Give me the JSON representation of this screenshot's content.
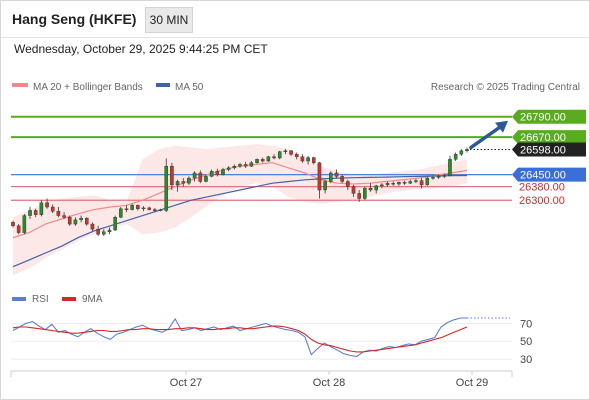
{
  "header": {
    "title": "Hang Seng (HKFE)",
    "timeframe": "30 MIN",
    "datetime": "Wednesday, October 29, 2025 9:44:25 PM CET"
  },
  "legend": {
    "ma20": "MA 20 + Bollinger Bands",
    "ma50": "MA 50",
    "credit": "Research © 2025 Trading Central"
  },
  "rsi_legend": {
    "rsi": "RSI",
    "ma9": "9MA"
  },
  "colors": {
    "resistance": "#5aac1f",
    "support": "#e2747b",
    "pivot": "#3a6fd8",
    "bullish_candle": "#2a8a2a",
    "bearish_candle": "#c0392b",
    "ma20": "#f08a8a",
    "ma50": "#3f63a8",
    "bollinger_fill": "#fde6e6",
    "arrow": "#2d5a96",
    "rsi": "#5b7fd6",
    "rsi_ma9": "#d62728"
  },
  "chart_data": [
    {
      "type": "candlestick",
      "x_ticks": [
        "Oct 27",
        "Oct 28",
        "Oct 29"
      ],
      "ylim": [
        25820,
        26900
      ],
      "levels": [
        {
          "label": "26790.00",
          "value": 26790,
          "role": "resistance"
        },
        {
          "label": "26670.00",
          "value": 26670,
          "role": "resistance"
        },
        {
          "label": "26598.00",
          "value": 26598,
          "role": "last"
        },
        {
          "label": "26450.00",
          "value": 26450,
          "role": "pivot"
        },
        {
          "label": "26380.00",
          "value": 26380,
          "role": "support"
        },
        {
          "label": "26300.00",
          "value": 26300,
          "role": "support"
        }
      ],
      "series": [
        {
          "name": "Price",
          "ohlc": [
            [
              26170,
              26180,
              26140,
              26150
            ],
            [
              26150,
              26160,
              26100,
              26110
            ],
            [
              26110,
              26220,
              26100,
              26210
            ],
            [
              26210,
              26260,
              26190,
              26240
            ],
            [
              26240,
              26250,
              26200,
              26215
            ],
            [
              26215,
              26300,
              26205,
              26285
            ],
            [
              26285,
              26310,
              26250,
              26260
            ],
            [
              26260,
              26275,
              26225,
              26235
            ],
            [
              26235,
              26260,
              26200,
              26210
            ],
            [
              26210,
              26230,
              26190,
              26200
            ],
            [
              26200,
              26210,
              26150,
              26160
            ],
            [
              26160,
              26200,
              26150,
              26185
            ],
            [
              26185,
              26210,
              26170,
              26195
            ],
            [
              26195,
              26200,
              26150,
              26160
            ],
            [
              26160,
              26170,
              26120,
              26130
            ],
            [
              26130,
              26150,
              26090,
              26100
            ],
            [
              26100,
              26130,
              26090,
              26115
            ],
            [
              26115,
              26140,
              26100,
              26125
            ],
            [
              26125,
              26210,
              26120,
              26200
            ],
            [
              26200,
              26260,
              26195,
              26250
            ],
            [
              26250,
              26270,
              26230,
              26245
            ],
            [
              26245,
              26280,
              26240,
              26270
            ],
            [
              26270,
              26275,
              26240,
              26250
            ],
            [
              26250,
              26265,
              26235,
              26255
            ],
            [
              26255,
              26262,
              26240,
              26245
            ],
            [
              26245,
              26255,
              26230,
              26240
            ],
            [
              26240,
              26250,
              26235,
              26245
            ],
            [
              26240,
              26545,
              26230,
              26500
            ],
            [
              26500,
              26520,
              26360,
              26390
            ],
            [
              26390,
              26420,
              26350,
              26410
            ],
            [
              26410,
              26430,
              26380,
              26400
            ],
            [
              26400,
              26440,
              26390,
              26430
            ],
            [
              26430,
              26470,
              26410,
              26460
            ],
            [
              26460,
              26475,
              26400,
              26410
            ],
            [
              26410,
              26450,
              26405,
              26440
            ],
            [
              26440,
              26480,
              26435,
              26470
            ],
            [
              26470,
              26485,
              26440,
              26450
            ],
            [
              26450,
              26490,
              26445,
              26480
            ],
            [
              26480,
              26500,
              26470,
              26490
            ],
            [
              26490,
              26510,
              26480,
              26500
            ],
            [
              26500,
              26520,
              26490,
              26510
            ],
            [
              26510,
              26525,
              26490,
              26500
            ],
            [
              26500,
              26530,
              26495,
              26520
            ],
            [
              26520,
              26545,
              26515,
              26540
            ],
            [
              26540,
              26550,
              26520,
              26530
            ],
            [
              26530,
              26560,
              26525,
              26555
            ],
            [
              26555,
              26570,
              26540,
              26548
            ],
            [
              26548,
              26590,
              26540,
              26585
            ],
            [
              26585,
              26600,
              26570,
              26590
            ],
            [
              26590,
              26595,
              26560,
              26570
            ],
            [
              26570,
              26580,
              26540,
              26555
            ],
            [
              26555,
              26570,
              26520,
              26530
            ],
            [
              26530,
              26560,
              26510,
              26550
            ],
            [
              26550,
              26555,
              26510,
              26520
            ],
            [
              26520,
              26525,
              26310,
              26360
            ],
            [
              26360,
              26420,
              26340,
              26410
            ],
            [
              26410,
              26470,
              26400,
              26460
            ],
            [
              26460,
              26480,
              26430,
              26440
            ],
            [
              26440,
              26450,
              26400,
              26410
            ],
            [
              26410,
              26420,
              26360,
              26380
            ],
            [
              26380,
              26390,
              26320,
              26340
            ],
            [
              26340,
              26360,
              26290,
              26310
            ],
            [
              26310,
              26380,
              26300,
              26370
            ],
            [
              26370,
              26400,
              26350,
              26360
            ],
            [
              26360,
              26390,
              26340,
              26385
            ],
            [
              26385,
              26400,
              26370,
              26390
            ],
            [
              26390,
              26410,
              26380,
              26400
            ],
            [
              26400,
              26410,
              26385,
              26395
            ],
            [
              26395,
              26410,
              26385,
              26405
            ],
            [
              26405,
              26415,
              26390,
              26400
            ],
            [
              26400,
              26420,
              26395,
              26410
            ],
            [
              26410,
              26425,
              26400,
              26415
            ],
            [
              26415,
              26430,
              26370,
              26390
            ],
            [
              26390,
              26440,
              26385,
              26430
            ],
            [
              26430,
              26445,
              26420,
              26435
            ],
            [
              26435,
              26450,
              26425,
              26440
            ],
            [
              26440,
              26455,
              26430,
              26445
            ],
            [
              26445,
              26560,
              26440,
              26540
            ],
            [
              26540,
              26580,
              26530,
              26570
            ],
            [
              26570,
              26600,
              26560,
              26590
            ],
            [
              26590,
              26610,
              26580,
              26598
            ]
          ]
        },
        {
          "name": "MA 20",
          "values": [
            26080,
            26110,
            26160,
            26190,
            26220,
            26245,
            26260,
            26270,
            26300,
            26340,
            26380,
            26420,
            26450,
            26480,
            26500,
            26510,
            26520,
            26490,
            26460,
            26420,
            26400,
            26395,
            26400,
            26410,
            26420,
            26430,
            26445,
            26460,
            26475
          ]
        },
        {
          "name": "MA 50",
          "values": [
            25910,
            25950,
            25990,
            26030,
            26080,
            26120,
            26150,
            26180,
            26210,
            26240,
            26270,
            26300,
            26320,
            26340,
            26360,
            26380,
            26400,
            26410,
            26420,
            26425,
            26430,
            26432,
            26434,
            26436,
            26438,
            26440,
            26442,
            26444,
            26445
          ]
        },
        {
          "name": "Bollinger Upper",
          "values": [
            26200,
            26240,
            26290,
            26310,
            26320,
            26330,
            26300,
            26290,
            26540,
            26600,
            26620,
            26610,
            26600,
            26610,
            26620,
            26630,
            26620,
            26600,
            26550,
            26500,
            26470,
            26450,
            26450,
            26460,
            26470,
            26480,
            26500,
            26520,
            26540
          ]
        },
        {
          "name": "Bollinger Lower",
          "values": [
            25860,
            25900,
            25960,
            26010,
            26060,
            26100,
            26130,
            26160,
            26100,
            26110,
            26140,
            26200,
            26270,
            26330,
            26380,
            26400,
            26380,
            26320,
            26290,
            26280,
            26290,
            26300,
            26320,
            26340,
            26355,
            26365,
            26370,
            26380,
            26400
          ]
        }
      ]
    },
    {
      "type": "line",
      "name": "RSI panel",
      "y_ticks": [
        "70",
        "50",
        "30"
      ],
      "ylim": [
        20,
        85
      ],
      "series": [
        {
          "name": "RSI",
          "values": [
            62,
            66,
            70,
            72,
            67,
            63,
            69,
            60,
            62,
            58,
            55,
            60,
            64,
            59,
            55,
            52,
            58,
            60,
            63,
            66,
            68,
            64,
            62,
            60,
            64,
            75,
            62,
            63,
            65,
            62,
            64,
            66,
            63,
            65,
            67,
            62,
            64,
            66,
            68,
            70,
            67,
            65,
            63,
            62,
            60,
            55,
            35,
            42,
            48,
            44,
            40,
            36,
            34,
            33,
            38,
            40,
            39,
            42,
            44,
            43,
            45,
            47,
            46,
            50,
            52,
            54,
            66,
            71,
            74,
            76,
            76
          ]
        },
        {
          "name": "9MA",
          "values": [
            65,
            66,
            66,
            65,
            64,
            63,
            62,
            61,
            60,
            59,
            59,
            60,
            61,
            62,
            62,
            61,
            61,
            62,
            63,
            63,
            64,
            64,
            63,
            63,
            63,
            64,
            64,
            65,
            65,
            64,
            63,
            63,
            64,
            64,
            65,
            65,
            64,
            64,
            65,
            66,
            67,
            67,
            66,
            64,
            62,
            58,
            52,
            48,
            46,
            45,
            43,
            41,
            39,
            38,
            38,
            39,
            40,
            41,
            42,
            43,
            44,
            45,
            46,
            48,
            50,
            52,
            54,
            57,
            60,
            63,
            66
          ]
        }
      ]
    }
  ]
}
